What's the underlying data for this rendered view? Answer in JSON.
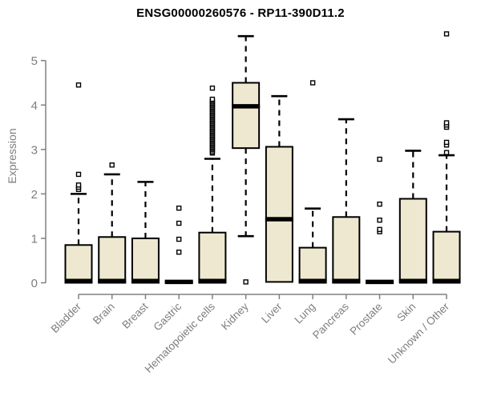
{
  "title": "ENSG00000260576 - RP11-390D11.2",
  "chart_data": {
    "type": "boxplot",
    "title": "ENSG00000260576 - RP11-390D11.2",
    "ylabel": "Expression",
    "xlabel": "",
    "ylim": [
      0,
      5.6
    ],
    "y_ticks": [
      0,
      1,
      2,
      3,
      4,
      5
    ],
    "grid": false,
    "legend": "none",
    "colors": {
      "box_fill": "#EDE8CF",
      "box_stroke": "#000000",
      "median": "#000000",
      "whisker": "#000000",
      "axis": "#808080",
      "tick_label": "#7E7E7E",
      "title": "#000000",
      "background": "#FFFFFF"
    },
    "boxes": [
      {
        "category": "Bladder",
        "q1": 0,
        "median": 0.04,
        "q3": 0.85,
        "whisker_low": 0,
        "whisker_high": 2.0,
        "outliers": [
          2.1,
          2.15,
          2.2,
          2.44,
          4.45
        ]
      },
      {
        "category": "Brain",
        "q1": 0,
        "median": 0.04,
        "q3": 1.03,
        "whisker_low": 0,
        "whisker_high": 2.44,
        "outliers": [
          2.65
        ]
      },
      {
        "category": "Breast",
        "q1": 0,
        "median": 0.04,
        "q3": 1.0,
        "whisker_low": 0,
        "whisker_high": 2.27,
        "outliers": []
      },
      {
        "category": "Gastric",
        "q1": 0,
        "median": 0.02,
        "q3": 0.03,
        "whisker_low": 0,
        "whisker_high": 0.03,
        "outliers": [
          0.69,
          0.98,
          1.34,
          1.68
        ]
      },
      {
        "category": "Hematopoietic cells",
        "q1": 0,
        "median": 0.04,
        "q3": 1.13,
        "whisker_low": 0,
        "whisker_high": 2.79,
        "outliers": [
          2.92,
          2.95,
          2.99,
          3.02,
          3.05,
          3.08,
          3.11,
          3.14,
          3.17,
          3.2,
          3.23,
          3.26,
          3.29,
          3.32,
          3.35,
          3.38,
          3.41,
          3.44,
          3.47,
          3.5,
          3.53,
          3.56,
          3.59,
          3.62,
          3.65,
          3.68,
          3.71,
          3.74,
          3.77,
          3.8,
          3.83,
          3.86,
          3.89,
          3.92,
          3.95,
          3.98,
          4.01,
          4.04,
          4.07,
          4.1,
          4.13,
          4.38
        ]
      },
      {
        "category": "Kidney",
        "q1": 3.03,
        "median": 3.97,
        "q3": 4.5,
        "whisker_low": 1.05,
        "whisker_high": 5.55,
        "outliers": [
          0.02
        ]
      },
      {
        "category": "Liver",
        "q1": 0.02,
        "median": 1.43,
        "q3": 3.06,
        "whisker_low": 0.02,
        "whisker_high": 4.2,
        "outliers": []
      },
      {
        "category": "Lung",
        "q1": 0,
        "median": 0.04,
        "q3": 0.79,
        "whisker_low": 0,
        "whisker_high": 1.67,
        "outliers": [
          4.5
        ]
      },
      {
        "category": "Pancreas",
        "q1": 0,
        "median": 0.04,
        "q3": 1.48,
        "whisker_low": 0,
        "whisker_high": 3.68,
        "outliers": []
      },
      {
        "category": "Prostate",
        "q1": 0,
        "median": 0.02,
        "q3": 0.03,
        "whisker_low": 0,
        "whisker_high": 0.03,
        "outliers": [
          1.15,
          1.2,
          1.41,
          1.77,
          2.78
        ]
      },
      {
        "category": "Skin",
        "q1": 0,
        "median": 0.04,
        "q3": 1.89,
        "whisker_low": 0,
        "whisker_high": 2.97,
        "outliers": []
      },
      {
        "category": "Unknown / Other",
        "q1": 0,
        "median": 0.04,
        "q3": 1.15,
        "whisker_low": 0,
        "whisker_high": 2.87,
        "outliers": [
          2.93,
          3.1,
          3.16,
          3.5,
          3.55,
          3.6,
          5.6
        ]
      }
    ]
  }
}
